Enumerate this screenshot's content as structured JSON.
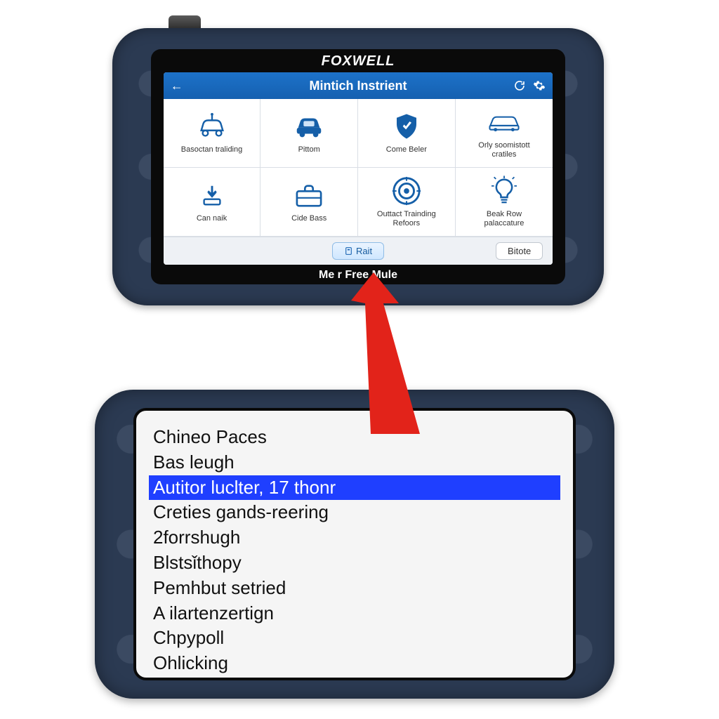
{
  "top": {
    "brand": "FOXWELL",
    "header": {
      "title": "Mintich Instrient",
      "back_glyph": "←"
    },
    "tiles": [
      {
        "label": "Basoctan traliding",
        "icon": "car-outline"
      },
      {
        "label": "Pittom",
        "icon": "car-solid"
      },
      {
        "label": "Come Beler",
        "icon": "shield-check"
      },
      {
        "label": "Orly soomistott cratiles",
        "icon": "car-wide"
      },
      {
        "label": "Can naik",
        "icon": "download"
      },
      {
        "label": "Cide Bass",
        "icon": "briefcase"
      },
      {
        "label": "Outtact Trainding Refoors",
        "icon": "target"
      },
      {
        "label": "Beak Row palaccature",
        "icon": "bulb"
      }
    ],
    "footer": {
      "primary_label": "Rait",
      "secondary_label": "Bitote"
    },
    "under_screen": "Me      r  Free Mule"
  },
  "bottom": {
    "items": [
      "Chineo Paces",
      "Bas leugh",
      "Autitor luclter, 17 thonr",
      "Creties gands-reering",
      "2forrshugh",
      "Blstsǐthopy",
      "Pemhbut setried",
      "A ilartenzertign",
      "Chpypoll",
      "Ohlicking"
    ],
    "selected_index": 2
  },
  "colors": {
    "header_blue": "#1560b0",
    "icon_blue": "#155fa8",
    "sel_blue": "#1f3fff",
    "shell": "#2b3a52",
    "arrow": "#e2231a"
  }
}
